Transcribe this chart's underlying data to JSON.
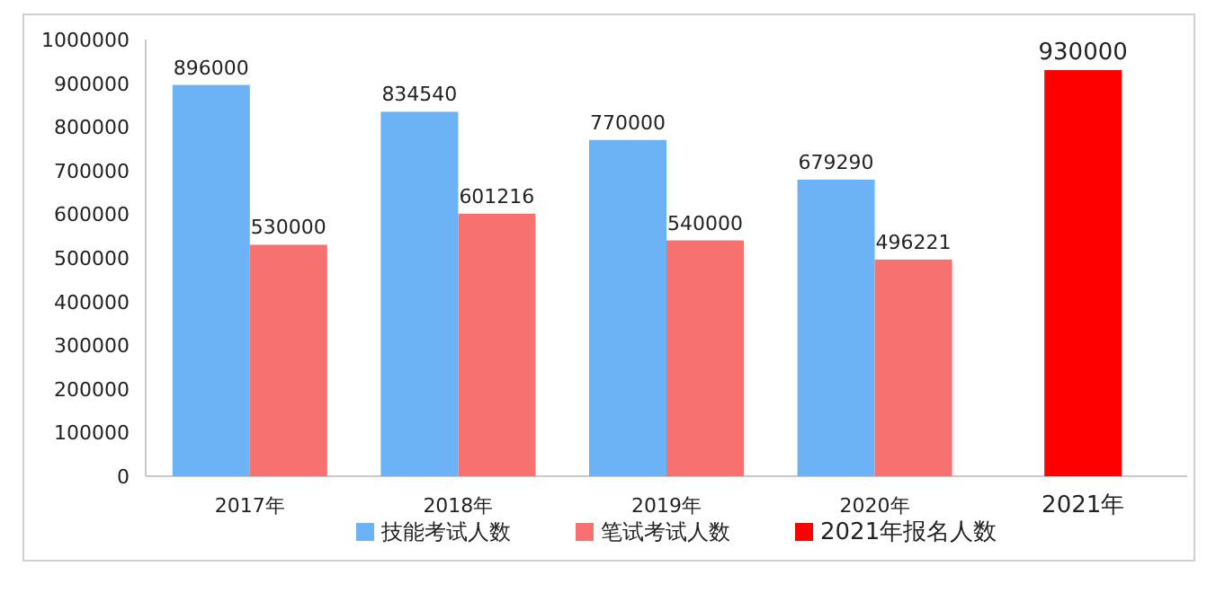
{
  "chart_data": {
    "type": "bar",
    "categories": [
      "2017年",
      "2018年",
      "2019年",
      "2020年",
      "2021年"
    ],
    "series": [
      {
        "name": "技能考试人数",
        "color": "#6cb2f7",
        "values": [
          896000,
          834540,
          770000,
          679290,
          null
        ]
      },
      {
        "name": "笔试考试人数",
        "color": "#f87171",
        "values": [
          530000,
          601216,
          540000,
          496221,
          null
        ]
      },
      {
        "name": "2021年报名人数",
        "color": "#ff0000",
        "values": [
          null,
          null,
          null,
          null,
          930000
        ]
      }
    ],
    "ylim": [
      0,
      1000000
    ],
    "yticks": [
      0,
      100000,
      200000,
      300000,
      400000,
      500000,
      600000,
      700000,
      800000,
      900000,
      1000000
    ],
    "data_labels": true,
    "legend": "bottom",
    "grid": false
  }
}
